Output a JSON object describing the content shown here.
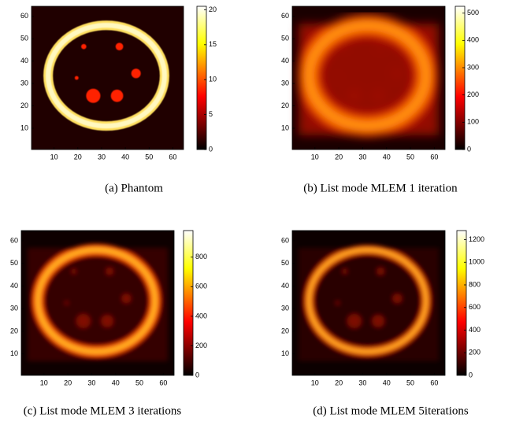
{
  "chart_data": [
    {
      "type": "heatmap",
      "caption": "(a) Phantom",
      "xlim": [
        0.5,
        64.5
      ],
      "xticks": [
        10,
        20,
        30,
        40,
        50,
        60
      ],
      "ylim": [
        0.5,
        64.5
      ],
      "yticks": [
        10,
        20,
        30,
        40,
        50,
        60
      ],
      "colorbar_lim": [
        0,
        20.5
      ],
      "colorbar_ticks": [
        0,
        5,
        10,
        15,
        20
      ]
    },
    {
      "type": "heatmap",
      "caption": "(b) List mode MLEM 1 iteration",
      "xlim": [
        0.5,
        64.5
      ],
      "xticks": [
        10,
        20,
        30,
        40,
        50,
        60
      ],
      "ylim": [
        0.5,
        64.5
      ],
      "yticks": [
        10,
        20,
        30,
        40,
        50,
        60
      ],
      "colorbar_lim": [
        0,
        525
      ],
      "colorbar_ticks": [
        0,
        100,
        200,
        300,
        400,
        500
      ]
    },
    {
      "type": "heatmap",
      "caption": "(c) List mode MLEM 3 iterations",
      "xlim": [
        0.5,
        64.5
      ],
      "xticks": [
        10,
        20,
        30,
        40,
        50,
        60
      ],
      "ylim": [
        0.5,
        64.5
      ],
      "yticks": [
        10,
        20,
        30,
        40,
        50,
        60
      ],
      "colorbar_lim": [
        0,
        980
      ],
      "colorbar_ticks": [
        0,
        200,
        400,
        600,
        800
      ]
    },
    {
      "type": "heatmap",
      "caption": "(d) List mode MLEM 5iterations",
      "xlim": [
        0.5,
        64.5
      ],
      "xticks": [
        10,
        20,
        30,
        40,
        50,
        60
      ],
      "ylim": [
        0.5,
        64.5
      ],
      "yticks": [
        10,
        20,
        30,
        40,
        50,
        60
      ],
      "colorbar_lim": [
        0,
        1280
      ],
      "colorbar_ticks": [
        0,
        200,
        400,
        600,
        800,
        1000,
        1200
      ]
    }
  ]
}
